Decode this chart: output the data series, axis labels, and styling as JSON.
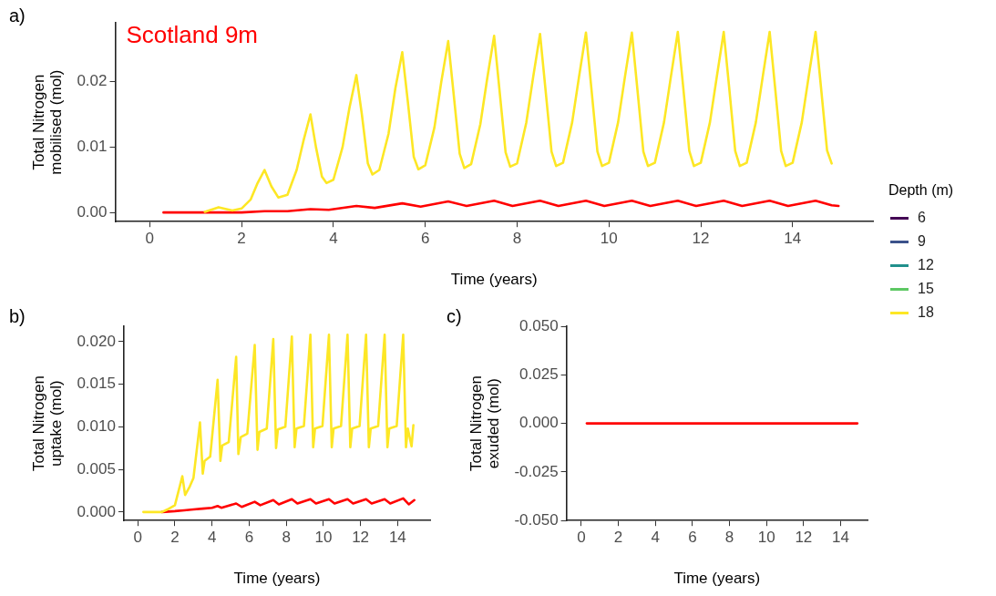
{
  "chart_data": [
    {
      "type": "line",
      "xlabel": "Time (years)",
      "ylabel": "Total Nitrogen\nmobilised (mol)",
      "legend_title": "Depth (m)",
      "legend": "right",
      "grid": false,
      "marker": "none",
      "line_style": "solid",
      "annotations": [
        "a)",
        "Scotland 9m"
      ],
      "xlim": [
        -0.75,
        15.75
      ],
      "xticks": [
        0,
        2,
        4,
        6,
        8,
        10,
        12,
        14
      ],
      "ylim": [
        -0.0014,
        0.029
      ],
      "yticks": [
        {
          "value": 0,
          "label": "0.00"
        },
        {
          "value": 0.01,
          "label": "0.01"
        },
        {
          "value": 0.02,
          "label": "0.02"
        }
      ],
      "series": [
        {
          "name": "6",
          "color": "#440154"
        },
        {
          "name": "9",
          "color": "#3b528b"
        },
        {
          "name": "12",
          "color": "#21908c"
        },
        {
          "name": "15",
          "color": "#5dc863"
        },
        {
          "name": "18",
          "color": "#fde725",
          "x": [
            1.2,
            1.5,
            1.8,
            2.0,
            2.2,
            2.35,
            2.5,
            2.65,
            2.8,
            3.0,
            3.2,
            3.35,
            3.5,
            3.62,
            3.75,
            3.85,
            4.0,
            4.2,
            4.35,
            4.5,
            4.62,
            4.75,
            4.85,
            5.0,
            5.2,
            5.35,
            5.5,
            5.62,
            5.75,
            5.85,
            6.0,
            6.2,
            6.35,
            6.5,
            6.62,
            6.75,
            6.85,
            7.0,
            7.2,
            7.35,
            7.5,
            7.62,
            7.75,
            7.85,
            8.0,
            8.2,
            8.35,
            8.5,
            8.62,
            8.75,
            8.85,
            9.0,
            9.2,
            9.35,
            9.5,
            9.62,
            9.75,
            9.85,
            10.0,
            10.2,
            10.35,
            10.5,
            10.62,
            10.75,
            10.85,
            11.0,
            11.2,
            11.35,
            11.5,
            11.62,
            11.75,
            11.85,
            12.0,
            12.2,
            12.35,
            12.5,
            12.62,
            12.75,
            12.85,
            13.0,
            13.2,
            13.35,
            13.5,
            13.62,
            13.75,
            13.85,
            14.0,
            14.2,
            14.35,
            14.5,
            14.62,
            14.75,
            14.85
          ],
          "values": [
            0.0001,
            0.0008,
            0.0003,
            0.0006,
            0.002,
            0.0045,
            0.0065,
            0.004,
            0.0023,
            0.0027,
            0.0065,
            0.011,
            0.015,
            0.01,
            0.0055,
            0.0045,
            0.005,
            0.01,
            0.016,
            0.021,
            0.015,
            0.0075,
            0.0058,
            0.0065,
            0.012,
            0.019,
            0.0245,
            0.017,
            0.0085,
            0.0066,
            0.0072,
            0.013,
            0.02,
            0.0262,
            0.018,
            0.009,
            0.0068,
            0.0074,
            0.0135,
            0.0205,
            0.027,
            0.0185,
            0.0092,
            0.007,
            0.0075,
            0.0137,
            0.0207,
            0.0273,
            0.0187,
            0.0093,
            0.0071,
            0.0076,
            0.0138,
            0.0208,
            0.0275,
            0.0188,
            0.0093,
            0.0071,
            0.0076,
            0.0138,
            0.0208,
            0.0275,
            0.0188,
            0.0093,
            0.0071,
            0.0076,
            0.0138,
            0.0208,
            0.0276,
            0.019,
            0.0094,
            0.0071,
            0.0076,
            0.0138,
            0.0208,
            0.0276,
            0.019,
            0.0094,
            0.0071,
            0.0076,
            0.0138,
            0.0208,
            0.0276,
            0.019,
            0.0094,
            0.0071,
            0.0076,
            0.0138,
            0.0208,
            0.0276,
            0.019,
            0.0095,
            0.0075
          ]
        },
        {
          "color": "#ff0000",
          "x": [
            0.3,
            1.0,
            2.0,
            2.5,
            3.0,
            3.5,
            3.9,
            4.5,
            4.9,
            5.5,
            5.9,
            6.5,
            6.9,
            7.5,
            7.9,
            8.5,
            8.9,
            9.5,
            9.9,
            10.5,
            10.9,
            11.5,
            11.9,
            12.5,
            12.9,
            13.5,
            13.9,
            14.5,
            14.85,
            15.0
          ],
          "values": [
            0,
            0,
            0,
            0.0002,
            0.0002,
            0.0005,
            0.0004,
            0.001,
            0.0007,
            0.0014,
            0.0009,
            0.0017,
            0.001,
            0.0018,
            0.001,
            0.0018,
            0.001,
            0.0018,
            0.001,
            0.0018,
            0.001,
            0.0018,
            0.001,
            0.0018,
            0.001,
            0.0018,
            0.001,
            0.0018,
            0.0011,
            0.001
          ]
        }
      ]
    },
    {
      "type": "line",
      "xlabel": "Time (years)",
      "ylabel": "Total Nitrogen\nuptake (mol)",
      "grid": false,
      "marker": "none",
      "line_style": "solid",
      "annotations": [
        "b)"
      ],
      "xlim": [
        -0.75,
        15.75
      ],
      "xticks": [
        0,
        2,
        4,
        6,
        8,
        10,
        12,
        14
      ],
      "ylim": [
        -0.001,
        0.0218
      ],
      "yticks": [
        {
          "value": 0,
          "label": "0.000"
        },
        {
          "value": 0.005,
          "label": "0.005"
        },
        {
          "value": 0.01,
          "label": "0.010"
        },
        {
          "value": 0.015,
          "label": "0.015"
        },
        {
          "value": 0.02,
          "label": "0.020"
        }
      ],
      "series": [
        {
          "color": "#fde725",
          "x": [
            0.3,
            1.3,
            1.6,
            2.0,
            2.4,
            2.55,
            2.8,
            3.0,
            3.35,
            3.5,
            3.6,
            3.9,
            4.3,
            4.45,
            4.55,
            4.9,
            5.3,
            5.42,
            5.55,
            5.9,
            6.3,
            6.45,
            6.55,
            6.95,
            7.3,
            7.45,
            7.55,
            7.95,
            8.3,
            8.45,
            8.55,
            8.95,
            9.3,
            9.45,
            9.55,
            9.95,
            10.3,
            10.45,
            10.55,
            10.95,
            11.3,
            11.45,
            11.55,
            11.95,
            12.3,
            12.45,
            12.55,
            12.95,
            13.3,
            13.45,
            13.55,
            13.95,
            14.3,
            14.45,
            14.55,
            14.75,
            14.85
          ],
          "values": [
            0,
            0,
            0.0003,
            0.0008,
            0.0042,
            0.002,
            0.003,
            0.004,
            0.0105,
            0.0045,
            0.006,
            0.0065,
            0.0155,
            0.006,
            0.0078,
            0.0082,
            0.0182,
            0.0068,
            0.0088,
            0.0092,
            0.0196,
            0.0073,
            0.0094,
            0.0098,
            0.0203,
            0.0075,
            0.0097,
            0.01,
            0.0206,
            0.0076,
            0.0098,
            0.0101,
            0.0208,
            0.0076,
            0.0098,
            0.0101,
            0.0208,
            0.0076,
            0.0098,
            0.0101,
            0.0208,
            0.0076,
            0.0098,
            0.0101,
            0.0208,
            0.0076,
            0.0098,
            0.0101,
            0.0208,
            0.0076,
            0.0098,
            0.0101,
            0.0208,
            0.0076,
            0.0098,
            0.0077,
            0.0102
          ]
        },
        {
          "color": "#ff0000",
          "x": [
            1.3,
            2.0,
            2.5,
            3.0,
            3.5,
            4.0,
            4.3,
            4.5,
            5.3,
            5.6,
            6.3,
            6.6,
            7.3,
            7.6,
            8.3,
            8.6,
            9.3,
            9.6,
            10.3,
            10.6,
            11.3,
            11.6,
            12.3,
            12.6,
            13.3,
            13.6,
            14.3,
            14.6,
            14.9
          ],
          "values": [
            0,
            0.0001,
            0.0002,
            0.0003,
            0.0004,
            0.0005,
            0.0007,
            0.0005,
            0.001,
            0.0006,
            0.0012,
            0.0008,
            0.0014,
            0.0009,
            0.0015,
            0.001,
            0.0015,
            0.001,
            0.0015,
            0.001,
            0.0015,
            0.001,
            0.0015,
            0.001,
            0.0015,
            0.001,
            0.0016,
            0.0009,
            0.0014
          ]
        }
      ]
    },
    {
      "type": "line",
      "xlabel": "Time (years)",
      "ylabel": "Total Nitrogen\nexuded (mol)",
      "grid": false,
      "marker": "none",
      "line_style": "solid",
      "annotations": [
        "c)"
      ],
      "xlim": [
        -0.8,
        15.45
      ],
      "xticks": [
        0,
        2,
        4,
        6,
        8,
        10,
        12,
        14
      ],
      "ylim": [
        -0.05,
        0.05
      ],
      "yticks": [
        {
          "value": -0.05,
          "label": "-0.050"
        },
        {
          "value": -0.025,
          "label": "-0.025"
        },
        {
          "value": 0,
          "label": "0.000"
        },
        {
          "value": 0.025,
          "label": "0.025"
        },
        {
          "value": 0.05,
          "label": "0.050"
        }
      ],
      "series": [
        {
          "color": "#ff0000",
          "x": [
            0.3,
            14.9
          ],
          "values": [
            0,
            0
          ]
        }
      ]
    }
  ]
}
